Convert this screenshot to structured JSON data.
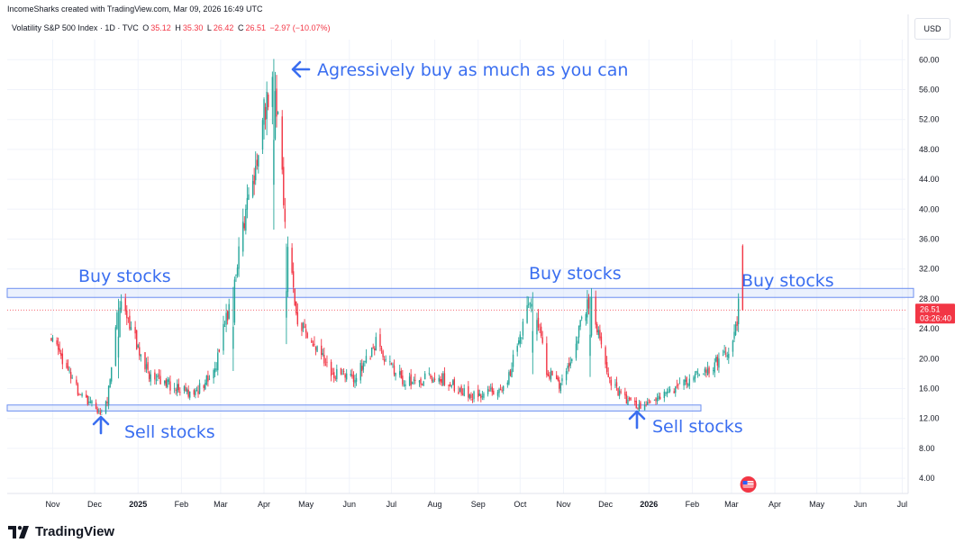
{
  "header": {
    "credit": "IncomeSharks created with TradingView.com, Mar 09, 2026 16:49 UTC",
    "symbol_label": "Volatility S&P 500 Index · 1D · TVC",
    "ohlc": {
      "o_label": "O",
      "o_value": "35.12",
      "h_label": "H",
      "h_value": "35.30",
      "l_label": "L",
      "l_value": "26.42",
      "c_label": "C",
      "c_value": "26.51",
      "change": "−2.97 (−10.07%)"
    },
    "currency_button": "USD"
  },
  "brand": {
    "name": "TradingView"
  },
  "colors": {
    "up": "#26a69a",
    "down": "#f23645",
    "annotation": "#3a6ef0",
    "zone_fill": "#dbe6fb",
    "zone_border": "#6c8ff0",
    "last_price_bg": "#f23645"
  },
  "chart_data": {
    "type": "candlestick",
    "title": "Volatility S&P 500 Index · 1D · TVC",
    "x_ticks": [
      "Nov",
      "Dec",
      "2025",
      "Feb",
      "Mar",
      "Apr",
      "May",
      "Jun",
      "Jul",
      "Aug",
      "Sep",
      "Oct",
      "Nov",
      "Dec",
      "2026",
      "Feb",
      "Mar",
      "Apr",
      "May",
      "Jun",
      "Jul"
    ],
    "y_ticks": [
      "4.00",
      "8.00",
      "12.00",
      "16.00",
      "20.00",
      "24.00",
      "28.00",
      "32.00",
      "36.00",
      "40.00",
      "44.00",
      "48.00",
      "52.00",
      "56.00",
      "60.00"
    ],
    "ylim": [
      0,
      64
    ],
    "last_price": {
      "value": "26.51",
      "countdown": "03:26:40"
    },
    "zones": [
      {
        "name": "resistance",
        "low": 28.2,
        "high": 29.4
      },
      {
        "name": "support",
        "low": 13.0,
        "high": 13.8
      }
    ],
    "key_levels": [
      {
        "date": "2024-10-31",
        "value": 23.2
      },
      {
        "date": "2024-12-06",
        "value": 12.7
      },
      {
        "date": "2024-12-18",
        "value": 28.0
      },
      {
        "date": "2025-03-10",
        "value": 29.6
      },
      {
        "date": "2025-04-08",
        "value": 60.1
      },
      {
        "date": "2025-04-17",
        "value": 35.4
      },
      {
        "date": "2025-06-20",
        "value": 22.0
      },
      {
        "date": "2025-10-10",
        "value": 28.9
      },
      {
        "date": "2025-11-20",
        "value": 28.3
      },
      {
        "date": "2025-12-24",
        "value": 13.4
      },
      {
        "date": "2026-03-09",
        "value": 35.3
      }
    ],
    "annotations": [
      {
        "text": "Agressively buy as much as you can",
        "arrow": "left"
      },
      {
        "text": "Buy stocks",
        "position": "left"
      },
      {
        "text": "Buy stocks",
        "position": "middle"
      },
      {
        "text": "Buy stocks",
        "position": "right"
      },
      {
        "text": "Sell stocks",
        "position": "left",
        "arrow": "up"
      },
      {
        "text": "Sell stocks",
        "position": "right",
        "arrow": "up"
      }
    ]
  }
}
